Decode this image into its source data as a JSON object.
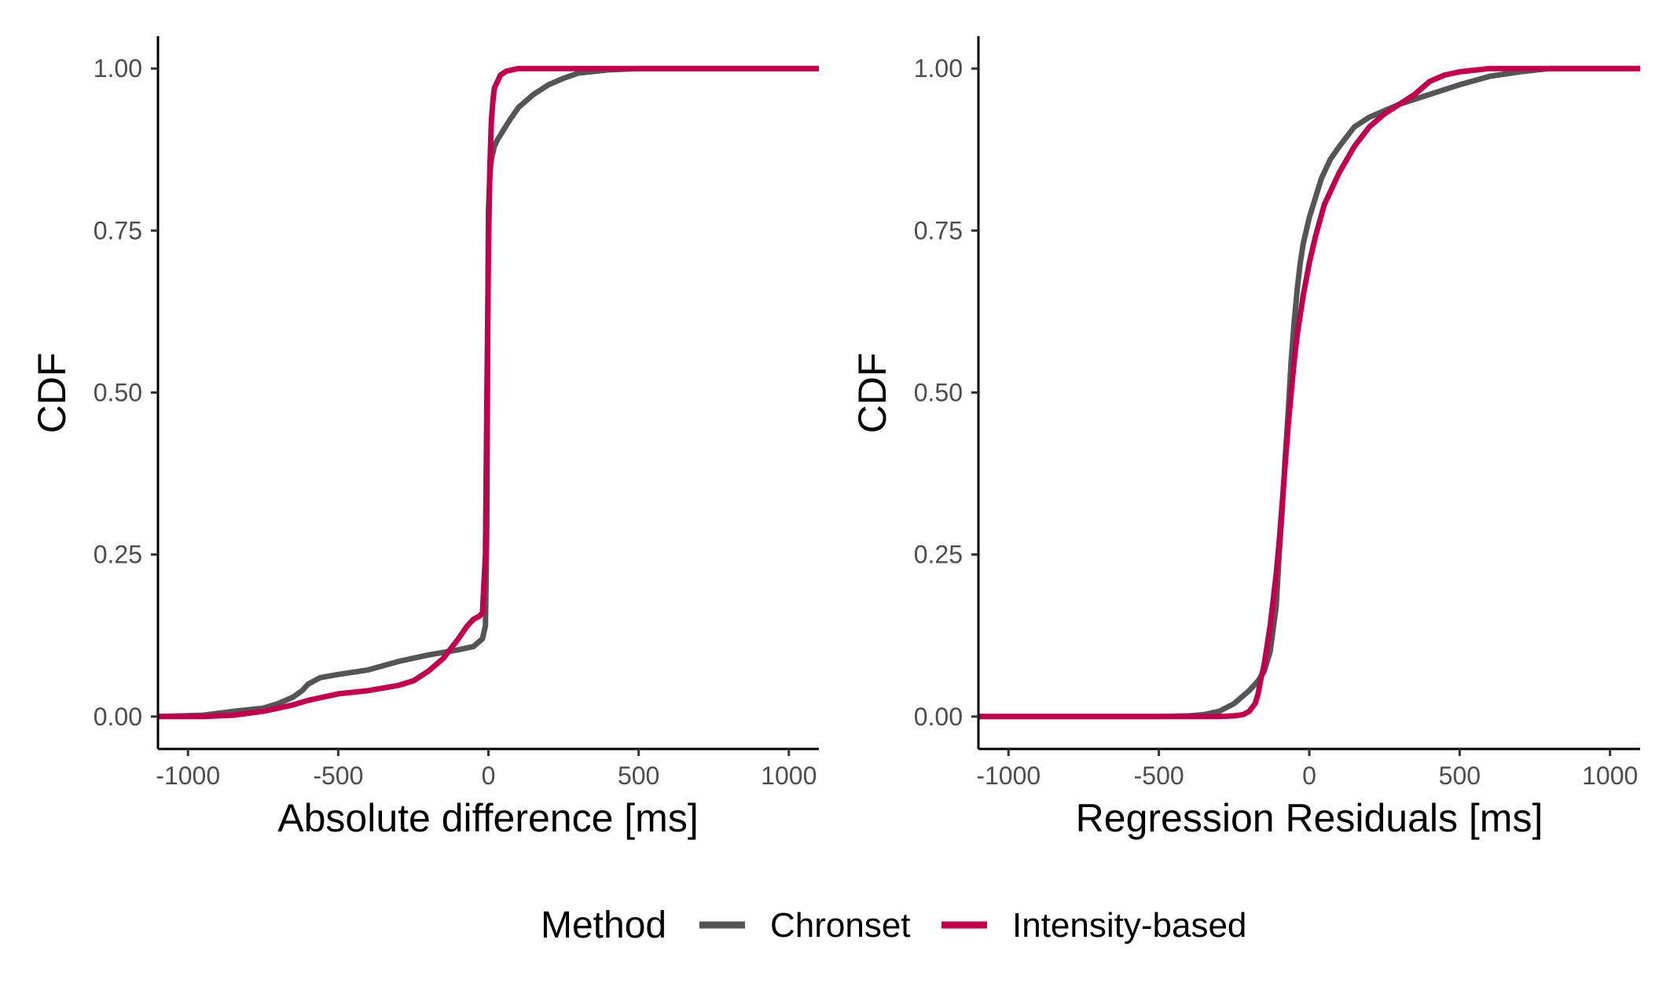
{
  "colors": {
    "chronset": "#555555",
    "intensity": "#C0004F",
    "axis": "#000000",
    "tick_text": "#4d4d4d"
  },
  "legend": {
    "title": "Method",
    "items": [
      {
        "label": "Chronset",
        "color": "#555555"
      },
      {
        "label": "Intensity-based",
        "color": "#C0004F"
      }
    ],
    "placement": "bottom"
  },
  "chart_data": [
    {
      "type": "line",
      "title": "",
      "xlabel": "Absolute difference [ms]",
      "ylabel": "CDF",
      "xlim": [
        -1100,
        1100
      ],
      "ylim": [
        -0.05,
        1.05
      ],
      "xticks": [
        -1000,
        -500,
        0,
        500,
        1000
      ],
      "xtick_labels": [
        "-1000",
        "-500",
        "0",
        "500",
        "1000"
      ],
      "yticks": [
        0,
        0.25,
        0.5,
        0.75,
        1.0
      ],
      "ytick_labels": [
        "0.00",
        "0.25",
        "0.50",
        "0.75",
        "1.00"
      ],
      "grid": false,
      "series": [
        {
          "name": "Chronset",
          "color": "#555555",
          "x": [
            -1100,
            -950,
            -850,
            -750,
            -700,
            -650,
            -620,
            -600,
            -560,
            -500,
            -400,
            -300,
            -250,
            -200,
            -100,
            -50,
            -20,
            -10,
            -5,
            -2,
            0,
            5,
            10,
            20,
            30,
            50,
            70,
            100,
            150,
            200,
            250,
            300,
            400,
            500,
            700,
            1100
          ],
          "y": [
            0,
            0.002,
            0.008,
            0.013,
            0.02,
            0.03,
            0.04,
            0.05,
            0.06,
            0.065,
            0.072,
            0.085,
            0.09,
            0.095,
            0.103,
            0.108,
            0.12,
            0.14,
            0.3,
            0.6,
            0.78,
            0.84,
            0.86,
            0.88,
            0.89,
            0.905,
            0.92,
            0.94,
            0.96,
            0.975,
            0.985,
            0.993,
            0.998,
            1.0,
            1.0,
            1.0
          ]
        },
        {
          "name": "Intensity-based",
          "color": "#C0004F",
          "x": [
            -1100,
            -950,
            -850,
            -750,
            -650,
            -600,
            -500,
            -400,
            -300,
            -250,
            -200,
            -150,
            -100,
            -70,
            -50,
            -30,
            -20,
            -10,
            -5,
            0,
            5,
            10,
            15,
            20,
            30,
            40,
            60,
            100,
            150,
            300,
            1100
          ],
          "y": [
            0,
            0,
            0.002,
            0.008,
            0.018,
            0.025,
            0.035,
            0.04,
            0.048,
            0.055,
            0.07,
            0.09,
            0.12,
            0.14,
            0.15,
            0.155,
            0.16,
            0.25,
            0.5,
            0.72,
            0.85,
            0.92,
            0.95,
            0.97,
            0.98,
            0.99,
            0.996,
            1.0,
            1.0,
            1.0,
            1.0
          ]
        }
      ]
    },
    {
      "type": "line",
      "title": "",
      "xlabel": "Regression Residuals [ms]",
      "ylabel": "CDF",
      "xlim": [
        -1100,
        1100
      ],
      "ylim": [
        -0.05,
        1.05
      ],
      "xticks": [
        -1000,
        -500,
        0,
        500,
        1000
      ],
      "xtick_labels": [
        "-1000",
        "-500",
        "0",
        "500",
        "1000"
      ],
      "yticks": [
        0,
        0.25,
        0.5,
        0.75,
        1.0
      ],
      "ytick_labels": [
        "0.00",
        "0.25",
        "0.50",
        "0.75",
        "1.00"
      ],
      "grid": false,
      "series": [
        {
          "name": "Chronset",
          "color": "#555555",
          "x": [
            -1100,
            -500,
            -400,
            -350,
            -300,
            -250,
            -200,
            -170,
            -150,
            -130,
            -110,
            -100,
            -90,
            -80,
            -70,
            -60,
            -50,
            -40,
            -30,
            -20,
            -10,
            0,
            20,
            40,
            70,
            100,
            150,
            200,
            250,
            300,
            400,
            500,
            600,
            700,
            800,
            1100
          ],
          "y": [
            0,
            0,
            0.001,
            0.003,
            0.008,
            0.02,
            0.04,
            0.055,
            0.07,
            0.1,
            0.17,
            0.25,
            0.32,
            0.4,
            0.47,
            0.55,
            0.61,
            0.66,
            0.7,
            0.73,
            0.75,
            0.77,
            0.8,
            0.83,
            0.86,
            0.88,
            0.91,
            0.925,
            0.935,
            0.945,
            0.96,
            0.975,
            0.988,
            0.995,
            1.0,
            1.0
          ]
        },
        {
          "name": "Intensity-based",
          "color": "#C0004F",
          "x": [
            -1100,
            -300,
            -250,
            -220,
            -200,
            -180,
            -170,
            -160,
            -150,
            -140,
            -130,
            -120,
            -110,
            -100,
            -90,
            -80,
            -70,
            -60,
            -50,
            -40,
            -30,
            -20,
            -10,
            0,
            20,
            50,
            100,
            150,
            200,
            250,
            300,
            350,
            400,
            450,
            500,
            600,
            800,
            1100
          ],
          "y": [
            0,
            0,
            0.001,
            0.003,
            0.008,
            0.02,
            0.035,
            0.06,
            0.08,
            0.11,
            0.14,
            0.18,
            0.22,
            0.27,
            0.33,
            0.39,
            0.45,
            0.5,
            0.55,
            0.59,
            0.62,
            0.65,
            0.675,
            0.7,
            0.74,
            0.79,
            0.84,
            0.88,
            0.91,
            0.93,
            0.945,
            0.96,
            0.98,
            0.99,
            0.995,
            1.0,
            1.0,
            1.0
          ]
        }
      ]
    }
  ]
}
